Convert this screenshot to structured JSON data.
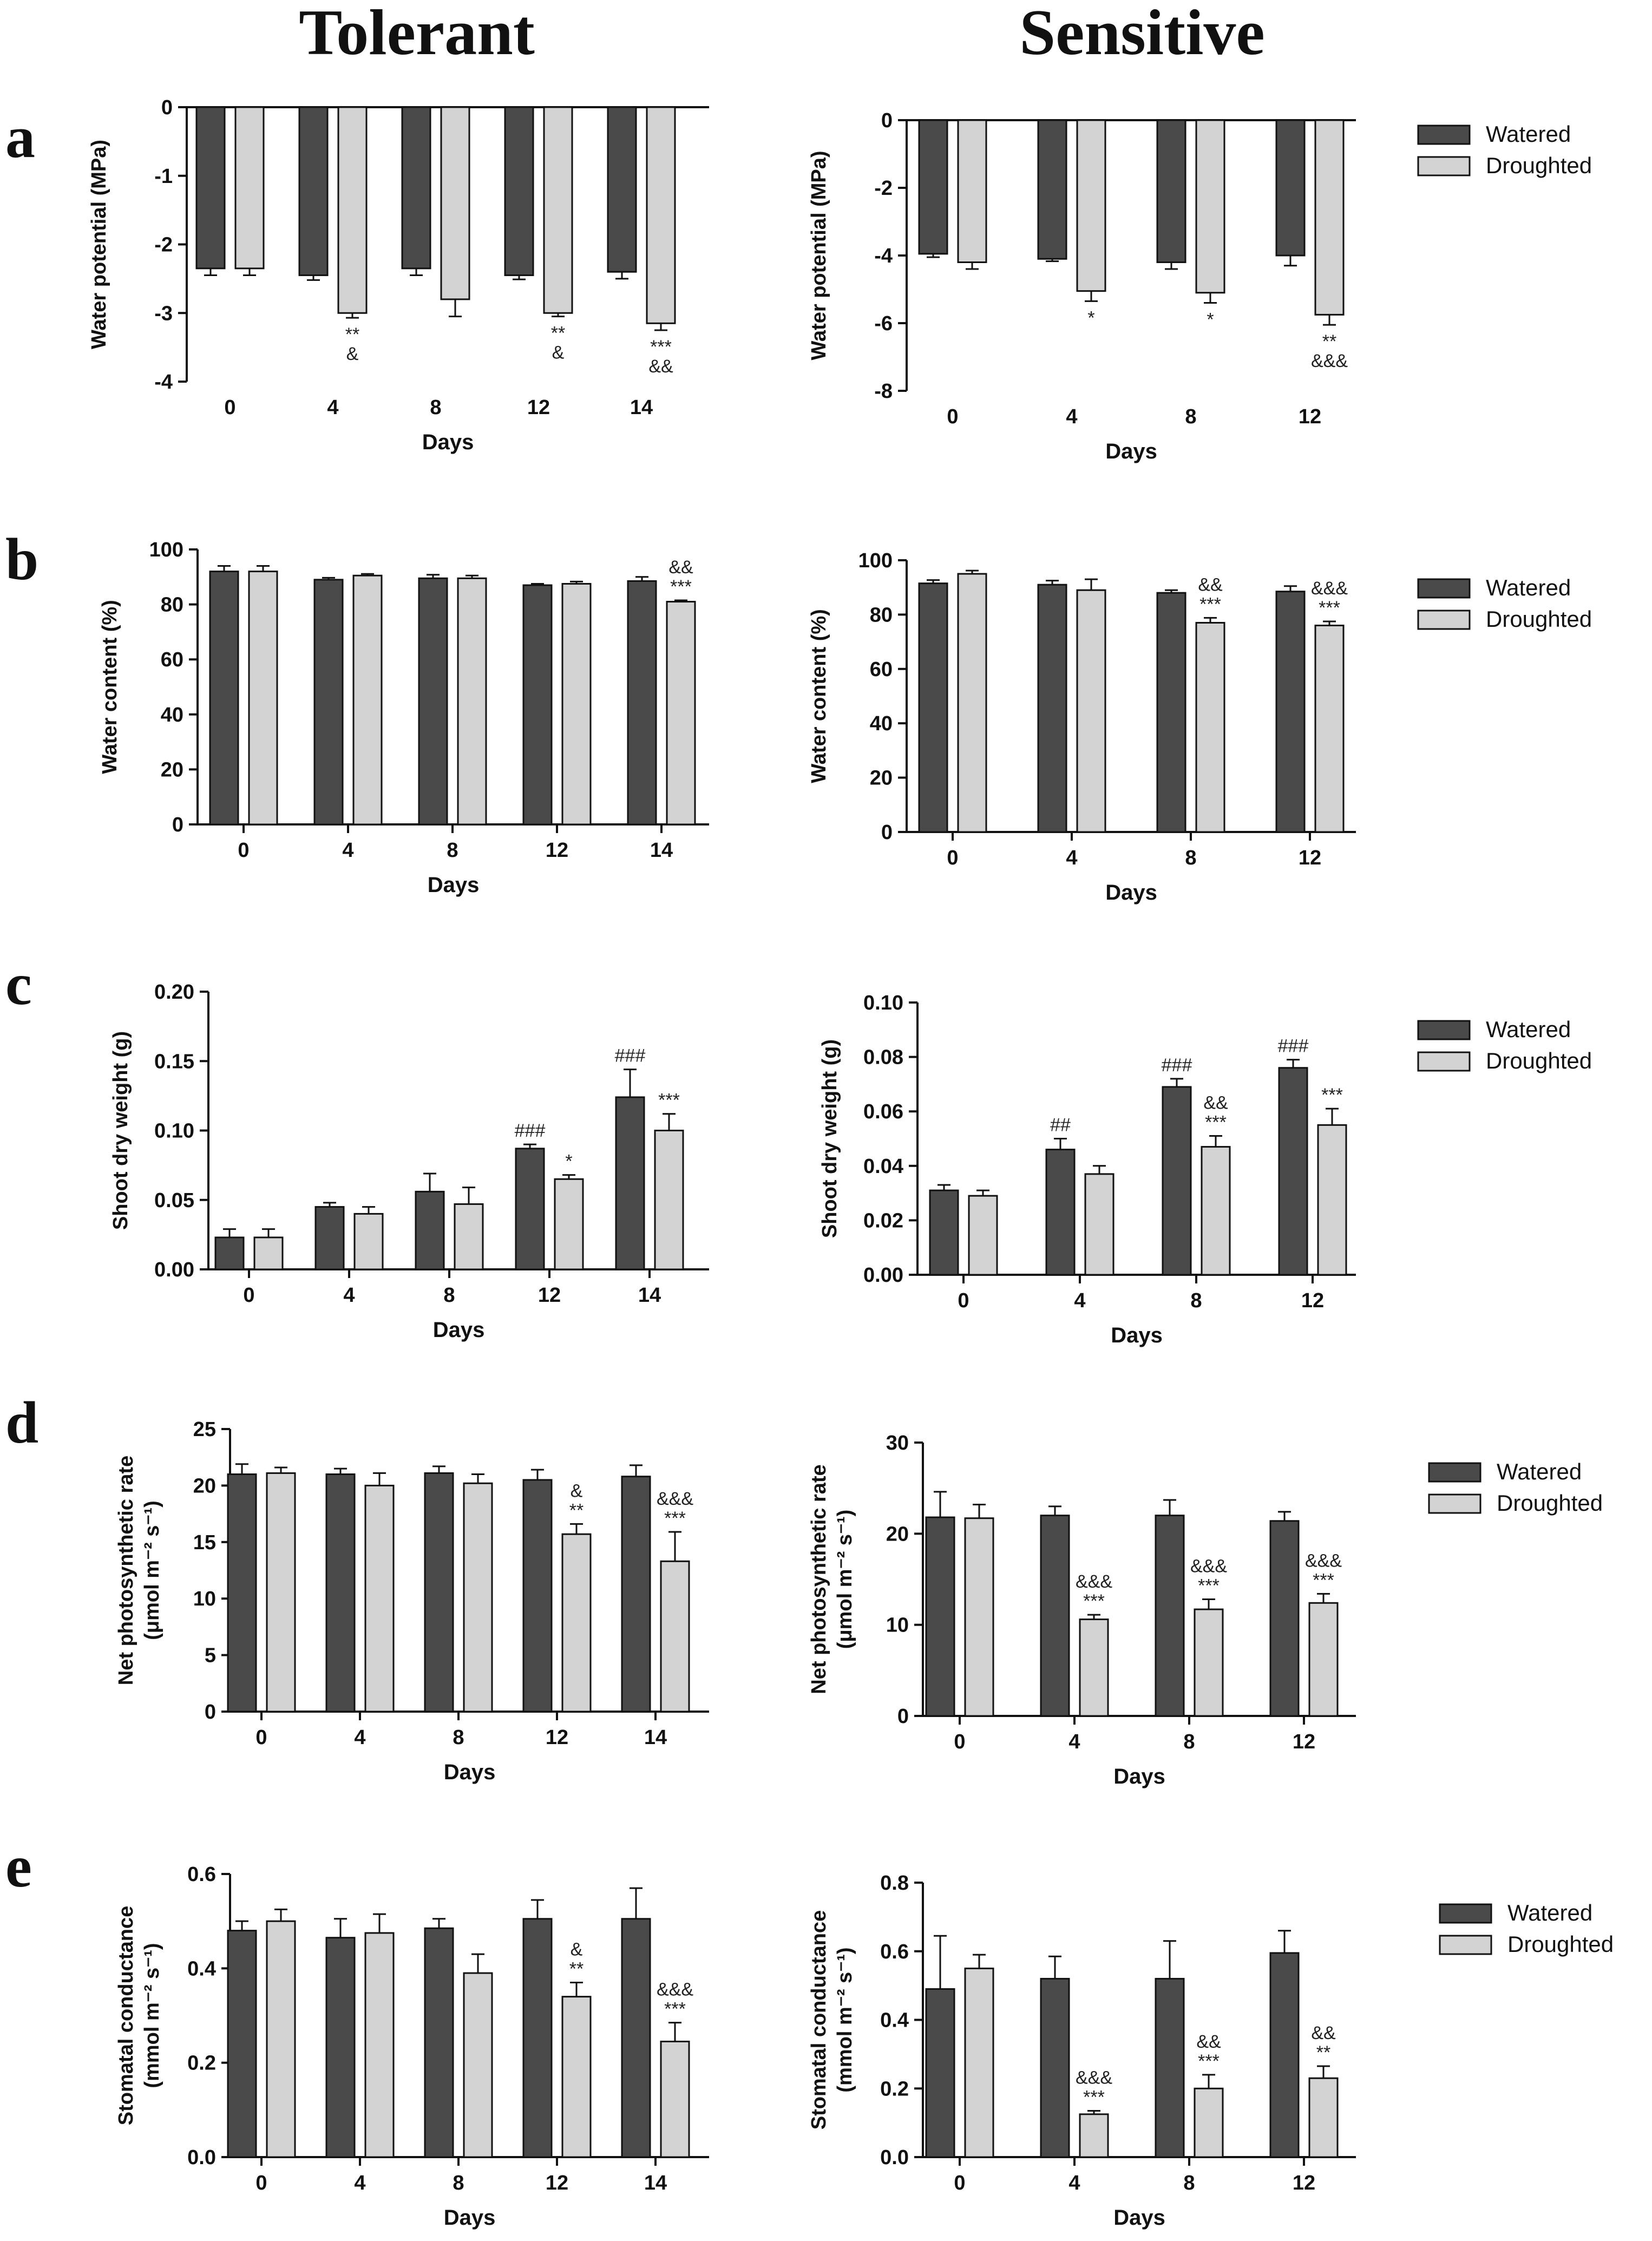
{
  "column_titles": [
    "Tolerant",
    "Sensitive"
  ],
  "panel_letters": [
    "a",
    "b",
    "c",
    "d",
    "e"
  ],
  "legend": {
    "watered": "Watered",
    "droughted": "Droughted"
  },
  "colors": {
    "watered": "#4a4a4a",
    "droughted": "#d3d3d3"
  },
  "chart_data": [
    {
      "id": "a-tolerant",
      "type": "bar",
      "panel": "a",
      "column": "Tolerant",
      "categories": [
        "0",
        "4",
        "8",
        "12",
        "14"
      ],
      "series": [
        {
          "name": "Watered",
          "values": [
            -2.35,
            -2.45,
            -2.35,
            -2.45,
            -2.4
          ],
          "errors": [
            0.1,
            0.07,
            0.1,
            0.06,
            0.1
          ]
        },
        {
          "name": "Droughted",
          "values": [
            -2.35,
            -3.0,
            -2.8,
            -3.0,
            -3.15
          ],
          "errors": [
            0.1,
            0.07,
            0.25,
            0.05,
            0.1
          ]
        }
      ],
      "annotations": [
        {
          "category": "4",
          "series": "Droughted",
          "lines": [
            "**",
            "&"
          ]
        },
        {
          "category": "12",
          "series": "Droughted",
          "lines": [
            "**",
            "&"
          ]
        },
        {
          "category": "14",
          "series": "Droughted",
          "lines": [
            "***",
            "&&"
          ]
        }
      ],
      "xlabel": "Days",
      "ylabel": "Water potential (MPa)",
      "ylim": [
        -4,
        0
      ],
      "yticks": [
        "0",
        "-1",
        "-2",
        "-3",
        "-4"
      ]
    },
    {
      "id": "a-sensitive",
      "type": "bar",
      "panel": "a",
      "column": "Sensitive",
      "categories": [
        "0",
        "4",
        "8",
        "12"
      ],
      "series": [
        {
          "name": "Watered",
          "values": [
            -3.95,
            -4.1,
            -4.2,
            -4.0
          ],
          "errors": [
            0.1,
            0.07,
            0.2,
            0.3
          ]
        },
        {
          "name": "Droughted",
          "values": [
            -4.2,
            -5.05,
            -5.1,
            -5.75
          ],
          "errors": [
            0.2,
            0.3,
            0.3,
            0.3
          ]
        }
      ],
      "annotations": [
        {
          "category": "4",
          "series": "Droughted",
          "lines": [
            "*"
          ]
        },
        {
          "category": "8",
          "series": "Droughted",
          "lines": [
            "*"
          ]
        },
        {
          "category": "12",
          "series": "Droughted",
          "lines": [
            "**",
            "&&&"
          ]
        }
      ],
      "xlabel": "Days",
      "ylabel": "Water potential (MPa)",
      "ylim": [
        -8,
        0
      ],
      "yticks": [
        "0",
        "-2",
        "-4",
        "-6",
        "-8"
      ]
    },
    {
      "id": "b-tolerant",
      "type": "bar",
      "panel": "b",
      "column": "Tolerant",
      "categories": [
        "0",
        "4",
        "8",
        "12",
        "14"
      ],
      "series": [
        {
          "name": "Watered",
          "values": [
            92,
            89,
            89.5,
            87,
            88.5
          ],
          "errors": [
            2,
            0.7,
            1.3,
            0.5,
            1.5
          ]
        },
        {
          "name": "Droughted",
          "values": [
            92,
            90.5,
            89.5,
            87.5,
            81
          ],
          "errors": [
            2,
            0.6,
            1,
            0.8,
            0.5
          ]
        }
      ],
      "annotations": [
        {
          "category": "14",
          "series": "Droughted",
          "lines": [
            "&&",
            "***"
          ]
        }
      ],
      "xlabel": "Days",
      "ylabel": "Water content (%)",
      "ylim": [
        0,
        100
      ],
      "yticks": [
        "0",
        "20",
        "40",
        "60",
        "80",
        "100"
      ]
    },
    {
      "id": "b-sensitive",
      "type": "bar",
      "panel": "b",
      "column": "Sensitive",
      "categories": [
        "0",
        "4",
        "8",
        "12"
      ],
      "series": [
        {
          "name": "Watered",
          "values": [
            91.5,
            91,
            88,
            88.5
          ],
          "errors": [
            1.2,
            1.5,
            1,
            2
          ]
        },
        {
          "name": "Droughted",
          "values": [
            95,
            89,
            77,
            76
          ],
          "errors": [
            1.2,
            4,
            1.8,
            1.5
          ]
        }
      ],
      "annotations": [
        {
          "category": "8",
          "series": "Droughted",
          "lines": [
            "&&",
            "***"
          ]
        },
        {
          "category": "12",
          "series": "Droughted",
          "lines": [
            "&&&",
            "***"
          ]
        }
      ],
      "xlabel": "Days",
      "ylabel": "Water content (%)",
      "ylim": [
        0,
        100
      ],
      "yticks": [
        "0",
        "20",
        "40",
        "60",
        "80",
        "100"
      ]
    },
    {
      "id": "c-tolerant",
      "type": "bar",
      "panel": "c",
      "column": "Tolerant",
      "categories": [
        "0",
        "4",
        "8",
        "12",
        "14"
      ],
      "series": [
        {
          "name": "Watered",
          "values": [
            0.023,
            0.045,
            0.056,
            0.087,
            0.124
          ],
          "errors": [
            0.006,
            0.003,
            0.013,
            0.003,
            0.02
          ]
        },
        {
          "name": "Droughted",
          "values": [
            0.023,
            0.04,
            0.047,
            0.065,
            0.1
          ],
          "errors": [
            0.006,
            0.005,
            0.012,
            0.003,
            0.012
          ]
        }
      ],
      "annotations": [
        {
          "category": "12",
          "series": "Watered",
          "lines": [
            "###"
          ]
        },
        {
          "category": "14",
          "series": "Watered",
          "lines": [
            "###"
          ]
        },
        {
          "category": "12",
          "series": "Droughted",
          "lines": [
            "*"
          ]
        },
        {
          "category": "14",
          "series": "Droughted",
          "lines": [
            "***"
          ]
        }
      ],
      "xlabel": "Days",
      "ylabel": "Shoot dry weight (g)",
      "ylim": [
        0,
        0.2
      ],
      "yticks": [
        "0.00",
        "0.05",
        "0.10",
        "0.15",
        "0.20"
      ]
    },
    {
      "id": "c-sensitive",
      "type": "bar",
      "panel": "c",
      "column": "Sensitive",
      "categories": [
        "0",
        "4",
        "8",
        "12"
      ],
      "series": [
        {
          "name": "Watered",
          "values": [
            0.031,
            0.046,
            0.069,
            0.076
          ],
          "errors": [
            0.002,
            0.004,
            0.003,
            0.003
          ]
        },
        {
          "name": "Droughted",
          "values": [
            0.029,
            0.037,
            0.047,
            0.055
          ],
          "errors": [
            0.002,
            0.003,
            0.004,
            0.006
          ]
        }
      ],
      "annotations": [
        {
          "category": "4",
          "series": "Watered",
          "lines": [
            "##"
          ]
        },
        {
          "category": "8",
          "series": "Watered",
          "lines": [
            "###"
          ]
        },
        {
          "category": "12",
          "series": "Watered",
          "lines": [
            "###"
          ]
        },
        {
          "category": "8",
          "series": "Droughted",
          "lines": [
            "&&",
            "***"
          ]
        },
        {
          "category": "12",
          "series": "Droughted",
          "lines": [
            "***"
          ]
        }
      ],
      "xlabel": "Days",
      "ylabel": "Shoot dry weight (g)",
      "ylim": [
        0,
        0.1
      ],
      "yticks": [
        "0.00",
        "0.02",
        "0.04",
        "0.06",
        "0.08",
        "0.10"
      ]
    },
    {
      "id": "d-tolerant",
      "type": "bar",
      "panel": "d",
      "column": "Tolerant",
      "categories": [
        "0",
        "4",
        "8",
        "12",
        "14"
      ],
      "series": [
        {
          "name": "Watered",
          "values": [
            21,
            21,
            21.1,
            20.5,
            20.8
          ],
          "errors": [
            0.9,
            0.5,
            0.6,
            0.9,
            1
          ]
        },
        {
          "name": "Droughted",
          "values": [
            21.1,
            20,
            20.2,
            15.7,
            13.3
          ],
          "errors": [
            0.5,
            1.1,
            0.8,
            0.9,
            2.6
          ]
        }
      ],
      "annotations": [
        {
          "category": "12",
          "series": "Droughted",
          "lines": [
            "&",
            "**"
          ]
        },
        {
          "category": "14",
          "series": "Droughted",
          "lines": [
            "&&&",
            "***"
          ]
        }
      ],
      "xlabel": "Days",
      "ylabel": [
        "Net photosynthetic rate",
        "(μmol m⁻² s⁻¹)"
      ],
      "ylim": [
        0,
        25
      ],
      "yticks": [
        "0",
        "5",
        "10",
        "15",
        "20",
        "25"
      ]
    },
    {
      "id": "d-sensitive",
      "type": "bar",
      "panel": "d",
      "column": "Sensitive",
      "categories": [
        "0",
        "4",
        "8",
        "12"
      ],
      "series": [
        {
          "name": "Watered",
          "values": [
            21.8,
            22,
            22,
            21.4
          ],
          "errors": [
            2.8,
            1,
            1.7,
            1
          ]
        },
        {
          "name": "Droughted",
          "values": [
            21.7,
            10.6,
            11.7,
            12.4
          ],
          "errors": [
            1.5,
            0.5,
            1.1,
            1
          ]
        }
      ],
      "annotations": [
        {
          "category": "4",
          "series": "Droughted",
          "lines": [
            "&&&",
            "***"
          ]
        },
        {
          "category": "8",
          "series": "Droughted",
          "lines": [
            "&&&",
            "***"
          ]
        },
        {
          "category": "12",
          "series": "Droughted",
          "lines": [
            "&&&",
            "***"
          ]
        }
      ],
      "xlabel": "Days",
      "ylabel": [
        "Net photosynthetic rate",
        "(μmol m⁻² s⁻¹)"
      ],
      "ylim": [
        0,
        30
      ],
      "yticks": [
        "0",
        "10",
        "20",
        "30"
      ]
    },
    {
      "id": "e-tolerant",
      "type": "bar",
      "panel": "e",
      "column": "Tolerant",
      "categories": [
        "0",
        "4",
        "8",
        "12",
        "14"
      ],
      "series": [
        {
          "name": "Watered",
          "values": [
            0.48,
            0.465,
            0.485,
            0.505,
            0.505
          ],
          "errors": [
            0.02,
            0.04,
            0.02,
            0.04,
            0.065
          ]
        },
        {
          "name": "Droughted",
          "values": [
            0.5,
            0.475,
            0.39,
            0.34,
            0.245
          ],
          "errors": [
            0.025,
            0.04,
            0.04,
            0.03,
            0.04
          ]
        }
      ],
      "annotations": [
        {
          "category": "12",
          "series": "Droughted",
          "lines": [
            "&",
            "**"
          ]
        },
        {
          "category": "14",
          "series": "Droughted",
          "lines": [
            "&&&",
            "***"
          ]
        }
      ],
      "xlabel": "Days",
      "ylabel": [
        "Stomatal conductance",
        "(mmol m⁻² s⁻¹)"
      ],
      "ylim": [
        0,
        0.6
      ],
      "yticks": [
        "0.0",
        "0.2",
        "0.4",
        "0.6"
      ]
    },
    {
      "id": "e-sensitive",
      "type": "bar",
      "panel": "e",
      "column": "Sensitive",
      "categories": [
        "0",
        "4",
        "8",
        "12"
      ],
      "series": [
        {
          "name": "Watered",
          "values": [
            0.49,
            0.52,
            0.52,
            0.595
          ],
          "errors": [
            0.155,
            0.065,
            0.11,
            0.065
          ]
        },
        {
          "name": "Droughted",
          "values": [
            0.55,
            0.125,
            0.2,
            0.23
          ],
          "errors": [
            0.04,
            0.01,
            0.04,
            0.035
          ]
        }
      ],
      "annotations": [
        {
          "category": "4",
          "series": "Droughted",
          "lines": [
            "&&&",
            "***"
          ]
        },
        {
          "category": "8",
          "series": "Droughted",
          "lines": [
            "&&",
            "***"
          ]
        },
        {
          "category": "12",
          "series": "Droughted",
          "lines": [
            "&&",
            "**"
          ]
        }
      ],
      "xlabel": "Days",
      "ylabel": [
        "Stomatal conductance",
        "(mmol m⁻² s⁻¹)"
      ],
      "ylim": [
        0,
        0.8
      ],
      "yticks": [
        "0.0",
        "0.2",
        "0.4",
        "0.6",
        "0.8"
      ]
    }
  ]
}
